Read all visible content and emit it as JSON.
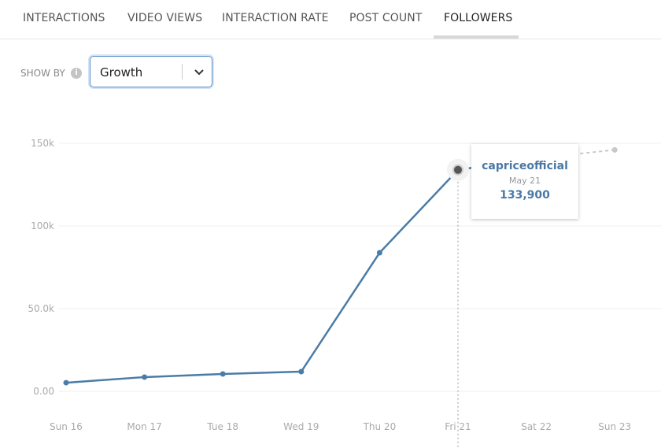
{
  "tabs": [
    {
      "label": "INTERACTIONS"
    },
    {
      "label": "VIDEO VIEWS"
    },
    {
      "label": "INTERACTION RATE"
    },
    {
      "label": "POST COUNT"
    },
    {
      "label": "FOLLOWERS",
      "active": true
    }
  ],
  "controls": {
    "show_by_label": "SHOW BY",
    "info_icon": "info-icon",
    "selected": "Growth"
  },
  "tooltip": {
    "name": "capriceofficial",
    "date": "May 21",
    "value": "133,900"
  },
  "colors": {
    "line": "#4a7ca8",
    "accent": "#5b8ec4"
  },
  "chart_data": {
    "type": "line",
    "categories": [
      "Sun 16",
      "Mon 17",
      "Tue 18",
      "Wed 19",
      "Thu 20",
      "Fri 21",
      "Sat 22",
      "Sun 23"
    ],
    "series": [
      {
        "name": "capriceofficial",
        "values": [
          5200,
          8600,
          10500,
          11900,
          83800,
          133900,
          141000,
          146000
        ]
      }
    ],
    "projected_from_index": 6,
    "yticks": [
      0,
      50000,
      100000,
      150000
    ],
    "ytick_labels": [
      "0.00",
      "50.0k",
      "100k",
      "150k"
    ],
    "ylim": [
      0,
      150000
    ],
    "grid": true,
    "highlighted_index": 5
  }
}
